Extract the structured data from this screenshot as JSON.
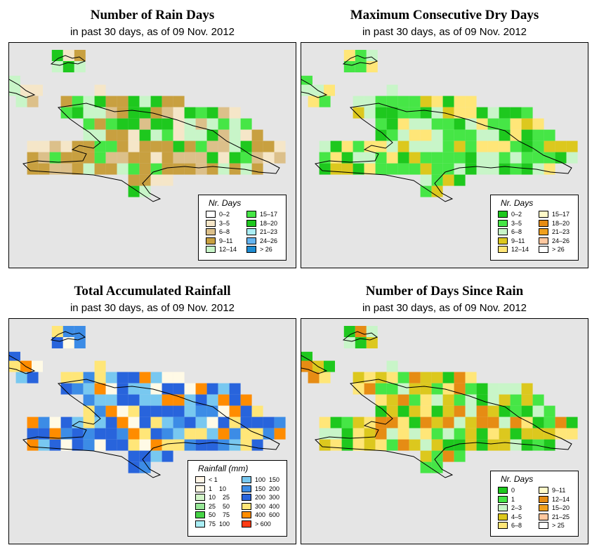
{
  "panels": [
    {
      "id": "rain-days",
      "title": "Number of Rain Days",
      "subtitle": "in past 30 days, as of  09 Nov. 2012",
      "legend": {
        "title": "Nr. Days",
        "items": [
          {
            "label": "0–2",
            "color": "#ffffff"
          },
          {
            "label": "3–5",
            "color": "#f5e6c8"
          },
          {
            "label": "6–8",
            "color": "#dcc08a"
          },
          {
            "label": "9–11",
            "color": "#c8a040"
          },
          {
            "label": "12–14",
            "color": "#c8f5c8"
          },
          {
            "label": "15–17",
            "color": "#46e646"
          },
          {
            "label": "18–20",
            "color": "#1ec81e"
          },
          {
            "label": "21–23",
            "color": "#aaeef5"
          },
          {
            "label": "24–26",
            "color": "#64b4f0"
          },
          {
            "label": "> 26",
            "color": "#1e8cd2"
          }
        ]
      }
    },
    {
      "id": "dry-days",
      "title": "Maximum Consecutive Dry Days",
      "subtitle": "in past 30 days, as of  09 Nov. 2012",
      "legend": {
        "title": "Nr. Days",
        "items": [
          {
            "label": "0–2",
            "color": "#1ec81e"
          },
          {
            "label": "3–5",
            "color": "#46e646"
          },
          {
            "label": "6–8",
            "color": "#c8f5c8"
          },
          {
            "label": "9–11",
            "color": "#dcc81e"
          },
          {
            "label": "12–14",
            "color": "#ffe678"
          },
          {
            "label": "15–17",
            "color": "#fffac8"
          },
          {
            "label": "18–20",
            "color": "#e68c14"
          },
          {
            "label": "21–23",
            "color": "#f0a01e"
          },
          {
            "label": "24–26",
            "color": "#ffc8a0"
          },
          {
            "label": "> 26",
            "color": "#ffffff"
          }
        ]
      }
    },
    {
      "id": "rainfall",
      "title": "Total Accumulated Rainfall",
      "subtitle": "in past 30 days, as of  09 Nov. 2012",
      "legend": {
        "title": "Rainfall (mm)",
        "items": [
          {
            "label": "< 1",
            "color": "#fff5e6"
          },
          {
            "label": "1    10",
            "color": "#fffae6"
          },
          {
            "label": "10    25",
            "color": "#d2f5c8"
          },
          {
            "label": "25    50",
            "color": "#96e696"
          },
          {
            "label": "50    75",
            "color": "#46d246"
          },
          {
            "label": "75  100",
            "color": "#aaeef5"
          },
          {
            "label": "100  150",
            "color": "#78c8f0"
          },
          {
            "label": "150  200",
            "color": "#3c8ce6"
          },
          {
            "label": "200  300",
            "color": "#2864dc"
          },
          {
            "label": "300  400",
            "color": "#ffe678"
          },
          {
            "label": "400  600",
            "color": "#ff8c00"
          },
          {
            "label": "> 600",
            "color": "#ff3c14"
          }
        ]
      }
    },
    {
      "id": "days-since-rain",
      "title": "Number of Days Since Rain",
      "subtitle": "in past 30 days, as of  09 Nov. 2012",
      "legend": {
        "title": "Nr. Days",
        "items": [
          {
            "label": "0",
            "color": "#1ec81e"
          },
          {
            "label": "1",
            "color": "#46e646"
          },
          {
            "label": "2–3",
            "color": "#c8f5c8"
          },
          {
            "label": "4–5",
            "color": "#dcc81e"
          },
          {
            "label": "6–8",
            "color": "#ffe678"
          },
          {
            "label": "9–11",
            "color": "#fffac8"
          },
          {
            "label": "12–14",
            "color": "#e68c14"
          },
          {
            "label": "15–20",
            "color": "#f0a01e"
          },
          {
            "label": "21–25",
            "color": "#ffc8a0"
          },
          {
            "label": "> 25",
            "color": "#ffffff"
          }
        ]
      }
    }
  ]
}
